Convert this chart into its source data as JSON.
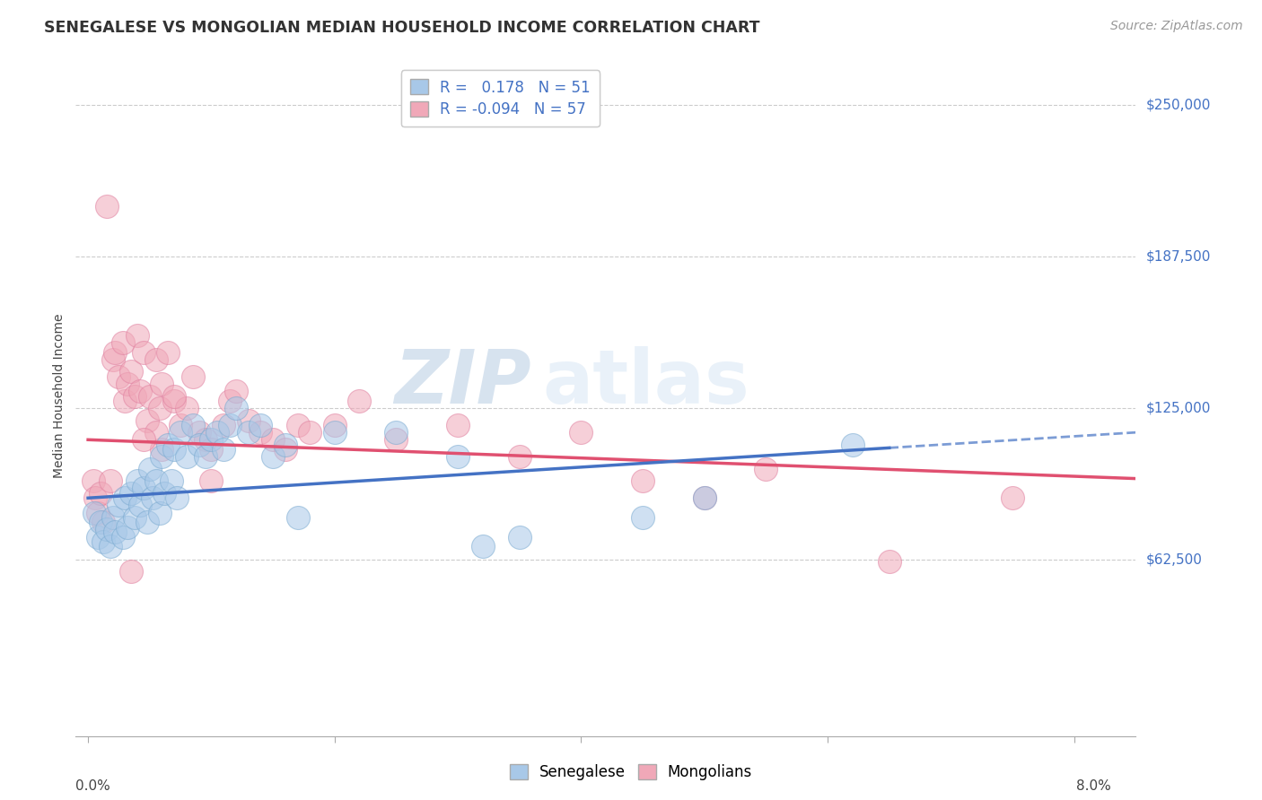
{
  "title": "SENEGALESE VS MONGOLIAN MEDIAN HOUSEHOLD INCOME CORRELATION CHART",
  "source": "Source: ZipAtlas.com",
  "ylabel": "Median Household Income",
  "ytick_labels": [
    "$62,500",
    "$125,000",
    "$187,500",
    "$250,000"
  ],
  "ytick_vals": [
    62500,
    125000,
    187500,
    250000
  ],
  "ylim": [
    -10000,
    270000
  ],
  "xlim": [
    -0.1,
    8.5
  ],
  "legend_blue_r": "R =  0.178",
  "legend_blue_n": "N = 51",
  "legend_pink_r": "R = -0.094",
  "legend_pink_n": "N = 57",
  "blue_color": "#A8C8E8",
  "pink_color": "#F0A8B8",
  "blue_edge": "#7AAAD0",
  "pink_edge": "#E080A0",
  "trend_blue": "#4472C4",
  "trend_pink": "#E05070",
  "watermark_zip": "ZIP",
  "watermark_atlas": "atlas",
  "background": "#FFFFFF",
  "grid_color": "#CCCCCC",
  "ytick_color": "#4472C4",
  "title_color": "#333333",
  "source_color": "#999999",
  "blue_scatter_x": [
    0.05,
    0.08,
    0.1,
    0.12,
    0.15,
    0.18,
    0.2,
    0.22,
    0.25,
    0.28,
    0.3,
    0.32,
    0.35,
    0.38,
    0.4,
    0.42,
    0.45,
    0.48,
    0.5,
    0.52,
    0.55,
    0.58,
    0.6,
    0.62,
    0.65,
    0.68,
    0.7,
    0.72,
    0.75,
    0.8,
    0.85,
    0.9,
    0.95,
    1.0,
    1.05,
    1.1,
    1.15,
    1.2,
    1.3,
    1.4,
    1.5,
    1.6,
    1.7,
    2.0,
    2.5,
    3.0,
    3.5,
    4.5,
    5.0,
    6.2,
    3.2
  ],
  "blue_scatter_y": [
    82000,
    72000,
    78000,
    70000,
    75000,
    68000,
    80000,
    74000,
    85000,
    72000,
    88000,
    76000,
    90000,
    80000,
    95000,
    85000,
    92000,
    78000,
    100000,
    88000,
    95000,
    82000,
    105000,
    90000,
    110000,
    95000,
    108000,
    88000,
    115000,
    105000,
    118000,
    110000,
    105000,
    112000,
    115000,
    108000,
    118000,
    125000,
    115000,
    118000,
    105000,
    110000,
    80000,
    115000,
    115000,
    105000,
    72000,
    80000,
    88000,
    110000,
    68000
  ],
  "pink_scatter_x": [
    0.04,
    0.06,
    0.08,
    0.1,
    0.12,
    0.15,
    0.18,
    0.2,
    0.22,
    0.25,
    0.28,
    0.3,
    0.32,
    0.35,
    0.38,
    0.4,
    0.42,
    0.45,
    0.48,
    0.5,
    0.55,
    0.58,
    0.6,
    0.65,
    0.7,
    0.75,
    0.8,
    0.85,
    0.9,
    0.95,
    1.0,
    1.1,
    1.15,
    1.2,
    1.3,
    1.4,
    1.5,
    1.6,
    1.7,
    1.8,
    2.0,
    2.2,
    2.5,
    3.0,
    3.5,
    4.0,
    4.5,
    5.0,
    5.5,
    6.5,
    7.5,
    1.0,
    0.7,
    0.6,
    0.55,
    0.45,
    0.35
  ],
  "pink_scatter_y": [
    95000,
    88000,
    82000,
    90000,
    78000,
    208000,
    95000,
    145000,
    148000,
    138000,
    152000,
    128000,
    135000,
    140000,
    130000,
    155000,
    132000,
    148000,
    120000,
    130000,
    145000,
    125000,
    135000,
    148000,
    128000,
    118000,
    125000,
    138000,
    115000,
    112000,
    108000,
    118000,
    128000,
    132000,
    120000,
    115000,
    112000,
    108000,
    118000,
    115000,
    118000,
    128000,
    112000,
    118000,
    105000,
    115000,
    95000,
    88000,
    100000,
    62000,
    88000,
    95000,
    130000,
    108000,
    115000,
    112000,
    58000
  ],
  "blue_trend_x0": 0.0,
  "blue_trend_y0": 88000,
  "blue_trend_x1": 8.5,
  "blue_trend_y1": 115000,
  "blue_solid_end": 6.5,
  "pink_trend_x0": 0.0,
  "pink_trend_y0": 112000,
  "pink_trend_x1": 8.5,
  "pink_trend_y1": 96000
}
